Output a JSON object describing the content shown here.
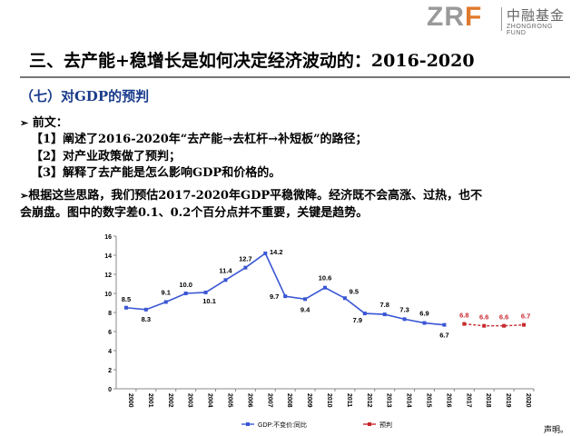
{
  "logo": {
    "mark_zr": "ZR",
    "mark_f": "F",
    "name_cn": "中融基金",
    "name_en": "ZHONGRONG FUND"
  },
  "title": "三、去产能+稳增长是如何决定经济波动的：2016-2020",
  "subhead": "（七）对GDP的预判",
  "bullets": {
    "arrow": "➢",
    "intro_label": "前文：",
    "items": [
      "【1】阐述了2016-2020年“去产能→去杠杆→补短板”的路径；",
      "【2】对产业政策做了预判；",
      "【3】解释了去产能是怎么影响GDP和价格的。"
    ],
    "paragraph_line1": "根据这些思路，我们预估2017-2020年GDP平稳微降。经济既不会高涨、过热，也不",
    "paragraph_line2": "会崩盘。图中的数字差0.1、0.2个百分点并不重要，关键是趋势。"
  },
  "footer_note": "声明。",
  "chart_data": {
    "type": "line",
    "x": [
      "2000",
      "2001",
      "2002",
      "2003",
      "2004",
      "2005",
      "2006",
      "2007",
      "2008",
      "2009",
      "2010",
      "2011",
      "2012",
      "2013",
      "2014",
      "2015",
      "2016",
      "2017",
      "2018",
      "2019",
      "2020"
    ],
    "ylim": [
      0,
      16
    ],
    "yticks": [
      0,
      2,
      4,
      6,
      8,
      10,
      12,
      14,
      16
    ],
    "legend_position": "bottom",
    "series": [
      {
        "name": "GDP:不变价:同比",
        "color": "#3a56d4",
        "x": [
          "2000",
          "2001",
          "2002",
          "2003",
          "2004",
          "2005",
          "2006",
          "2007",
          "2008",
          "2009",
          "2010",
          "2011",
          "2012",
          "2013",
          "2014",
          "2015",
          "2016"
        ],
        "values": [
          8.5,
          8.3,
          9.1,
          10.0,
          10.1,
          11.4,
          12.7,
          14.2,
          9.7,
          9.4,
          10.6,
          9.5,
          7.9,
          7.8,
          7.3,
          6.9,
          6.7
        ],
        "labels": [
          "8.5",
          "8.3",
          "9.1",
          "10.0",
          "10.1",
          "11.4",
          "12.7",
          "14.2",
          "9.7",
          "9.4",
          "10.6",
          "9.5",
          "7.9",
          "7.8",
          "7.3",
          "6.9",
          "6.7"
        ]
      },
      {
        "name": "预判",
        "color": "#c8282d",
        "x": [
          "2017",
          "2018",
          "2019",
          "2020"
        ],
        "values": [
          6.8,
          6.6,
          6.6,
          6.7
        ],
        "labels": [
          "6.8",
          "6.6",
          "6.6",
          "6.7"
        ]
      }
    ]
  }
}
